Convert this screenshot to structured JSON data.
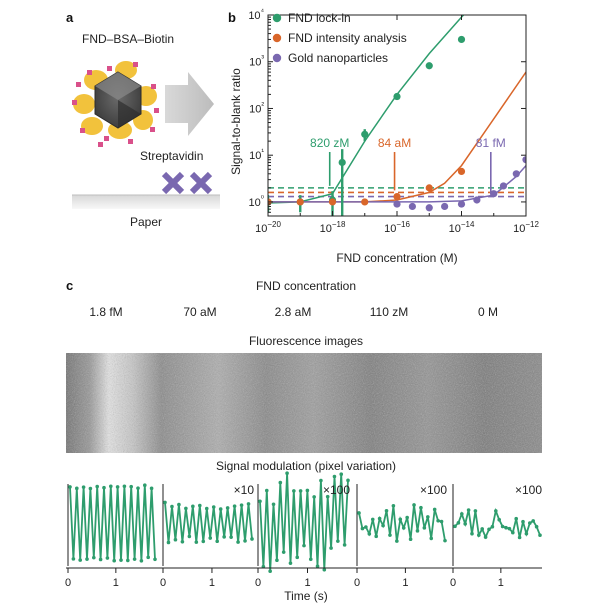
{
  "panel_a": {
    "label": "a",
    "molecule_label": "FND–BSA–Biotin",
    "protein_label": "Streptavidin",
    "substrate_label": "Paper"
  },
  "panel_b": {
    "label": "b"
  },
  "panel_c": {
    "label": "c",
    "concentration_title": "FND concentration",
    "concentrations": [
      "1.8 fM",
      "70 aM",
      "2.8 aM",
      "110 zM",
      "0 M"
    ],
    "images_title": "Fluorescence images",
    "modulation_title": "Signal modulation (pixel variation)",
    "multipliers": [
      "",
      "×10",
      "×100",
      "×100",
      "×100"
    ],
    "x_ticks": [
      "0",
      "1"
    ],
    "xlabel": "Time (s)"
  },
  "colors": {
    "green": "#2e9d6d",
    "orange": "#d9662a",
    "purple": "#7a68b0"
  },
  "chart_data": [
    {
      "type": "scatter",
      "title": "",
      "xlabel": "FND concentration (M)",
      "ylabel": "Signal-to-blank ratio",
      "x_scale": "log",
      "y_scale": "log",
      "xlim": [
        1e-20,
        1e-12
      ],
      "ylim": [
        0.5,
        10000
      ],
      "x_ticks": [
        1e-20,
        1e-18,
        1e-16,
        1e-14,
        1e-12
      ],
      "x_tick_labels": [
        "10−20",
        "10−18",
        "10−16",
        "10−14",
        "10−12"
      ],
      "y_ticks": [
        1,
        10,
        100,
        1000,
        10000
      ],
      "y_tick_labels": [
        "10⁰",
        "10¹",
        "10²",
        "10³",
        "10⁴"
      ],
      "legend_position": "top-left",
      "annotations": [
        {
          "text": "820 zM",
          "x": 8.2e-19,
          "series": "FND lock-in"
        },
        {
          "text": "84 aM",
          "x": 8.4e-17,
          "series": "FND intensity analysis"
        },
        {
          "text": "81 fM",
          "x": 8.1e-14,
          "series": "Gold nanoparticles"
        }
      ],
      "series": [
        {
          "name": "FND lock-in",
          "color": "#2e9d6d",
          "threshold": 2.0,
          "points": [
            {
              "x": 1e-20,
              "y": 1.0,
              "err": 0.4
            },
            {
              "x": 1e-19,
              "y": 1.0,
              "err": 0.4
            },
            {
              "x": 1e-18,
              "y": 1.1,
              "err": 0.6
            },
            {
              "x": 2e-18,
              "y": 7.0,
              "err": 6.5
            },
            {
              "x": 1e-17,
              "y": 28,
              "err": 8
            },
            {
              "x": 1e-16,
              "y": 180,
              "err": 20
            },
            {
              "x": 1e-15,
              "y": 820,
              "err": 60
            },
            {
              "x": 1e-14,
              "y": 3000,
              "err": 200
            }
          ],
          "fit": [
            [
              1e-20,
              0.95
            ],
            [
              1e-19,
              1.0
            ],
            [
              1e-18,
              1.5
            ],
            [
              1e-17,
              20
            ],
            [
              1e-16,
              200
            ],
            [
              1e-15,
              1500
            ],
            [
              1e-14,
              9000
            ],
            [
              2e-14,
              15000
            ]
          ]
        },
        {
          "name": "FND intensity analysis",
          "color": "#d9662a",
          "threshold": 1.6,
          "points": [
            {
              "x": 1e-20,
              "y": 1.0
            },
            {
              "x": 1e-19,
              "y": 1.0
            },
            {
              "x": 1e-18,
              "y": 1.0
            },
            {
              "x": 1e-17,
              "y": 1.0
            },
            {
              "x": 1e-16,
              "y": 1.3
            },
            {
              "x": 1e-15,
              "y": 2.0
            },
            {
              "x": 1e-14,
              "y": 4.5
            }
          ],
          "fit": [
            [
              1e-20,
              1.0
            ],
            [
              1e-17,
              1.0
            ],
            [
              1e-16,
              1.1
            ],
            [
              1e-15,
              1.6
            ],
            [
              3e-15,
              2.5
            ],
            [
              1e-14,
              6
            ],
            [
              1e-13,
              60
            ],
            [
              1e-12,
              600
            ],
            [
              2e-12,
              1200
            ]
          ]
        },
        {
          "name": "Gold nanoparticles",
          "color": "#7a68b0",
          "threshold": 1.3,
          "points": [
            {
              "x": 1e-16,
              "y": 0.9
            },
            {
              "x": 3e-16,
              "y": 0.8
            },
            {
              "x": 1e-15,
              "y": 0.75
            },
            {
              "x": 3e-15,
              "y": 0.8
            },
            {
              "x": 1e-14,
              "y": 0.9
            },
            {
              "x": 3e-14,
              "y": 1.1
            },
            {
              "x": 1e-13,
              "y": 1.5
            },
            {
              "x": 2e-13,
              "y": 2.2
            },
            {
              "x": 5e-13,
              "y": 4.0
            },
            {
              "x": 1e-12,
              "y": 8.0
            }
          ],
          "fit": [
            [
              1e-20,
              1.0
            ],
            [
              1e-15,
              1.0
            ],
            [
              1e-14,
              1.05
            ],
            [
              1e-13,
              1.4
            ],
            [
              5e-13,
              3.5
            ],
            [
              1e-12,
              6
            ]
          ]
        }
      ]
    }
  ]
}
